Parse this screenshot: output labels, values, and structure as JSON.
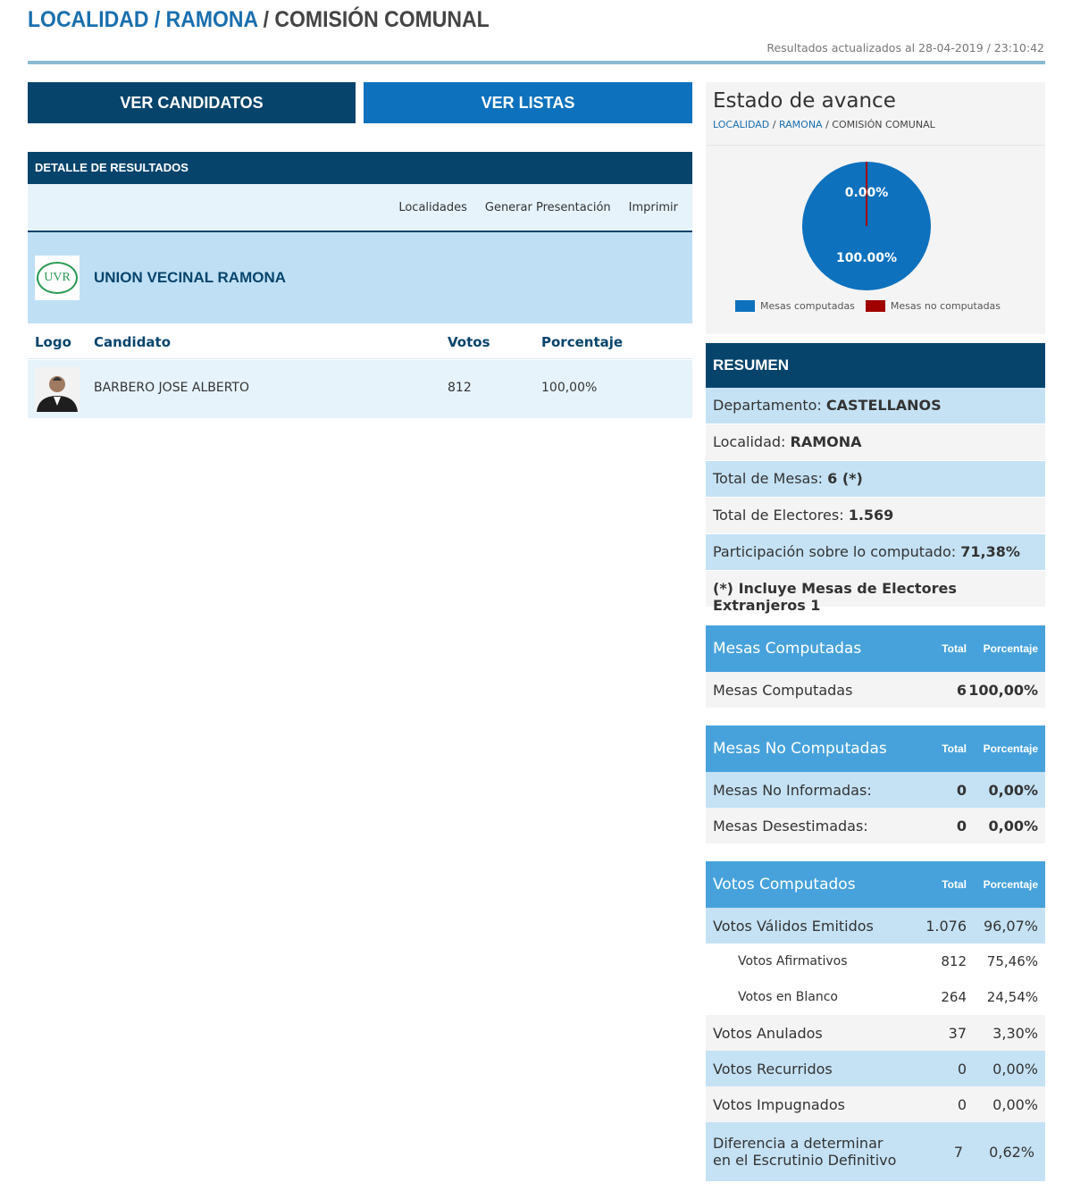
{
  "header": {
    "crumb1": "LOCALIDAD",
    "sep1": " / ",
    "crumb2": "RAMONA",
    "sep2": " / ",
    "crumb3": "COMISIÓN COMUNAL",
    "updated": "Resultados actualizados al 28-04-2019 / 23:10:42"
  },
  "buttons": {
    "candidatos": "VER CANDIDATOS",
    "listas": "VER LISTAS"
  },
  "detalle": {
    "title": "DETALLE DE RESULTADOS",
    "links": [
      "Localidades",
      "Generar Presentación",
      "Imprimir"
    ],
    "party": {
      "logo_text": "UVR",
      "name": "UNION VECINAL RAMONA"
    },
    "columns": [
      "Logo",
      "Candidato",
      "Votos",
      "Porcentaje"
    ],
    "rows": [
      {
        "candidato": "BARBERO JOSE ALBERTO",
        "votos": "812",
        "porcentaje": "100,00%"
      }
    ]
  },
  "estado": {
    "title": "Estado de avance",
    "bc1": "LOCALIDAD",
    "bc2": "RAMONA",
    "bc3": "COMISIÓN COMUNAL",
    "chart_data": {
      "type": "pie",
      "slices": [
        {
          "label": "Mesas computadas",
          "value": 100.0,
          "text": "100.00%",
          "color": "#0e71bd"
        },
        {
          "label": "Mesas no computadas",
          "value": 0.0,
          "text": "0.00%",
          "color": "#a00000"
        }
      ]
    }
  },
  "resumen": {
    "title": "RESUMEN",
    "rows": [
      {
        "label": "Departamento: ",
        "value": "CASTELLANOS"
      },
      {
        "label": "Localidad: ",
        "value": "RAMONA"
      },
      {
        "label": "Total de Mesas: ",
        "value": "6 (*)"
      },
      {
        "label": "Total de Electores: ",
        "value": "1.569"
      },
      {
        "label": "Participación sobre lo computado: ",
        "value": "71,38%"
      },
      {
        "label": "",
        "value": "(*) Incluye Mesas de Electores Extranjeros 1"
      }
    ]
  },
  "tables": [
    {
      "title": "Mesas Computadas",
      "col_total": "Total",
      "col_pct": "Porcentaje",
      "bold_values": true,
      "rows": [
        {
          "label": "Mesas Computadas",
          "total": "6",
          "pct": "100,00%"
        }
      ]
    },
    {
      "title": "Mesas No Computadas",
      "col_total": "Total",
      "col_pct": "Porcentaje",
      "bold_values": true,
      "rows": [
        {
          "label": "Mesas No Informadas:",
          "total": "0",
          "pct": "0,00%"
        },
        {
          "label": "Mesas Desestimadas:",
          "total": "0",
          "pct": "0,00%"
        }
      ]
    },
    {
      "title": "Votos Computados",
      "col_total": "Total",
      "col_pct": "Porcentaje",
      "bold_values": false,
      "rows": [
        {
          "label": "Votos Válidos Emitidos",
          "total": "1.076",
          "pct": "96,07%"
        },
        {
          "label": "Votos Afirmativos",
          "total": "812",
          "pct": "75,46%",
          "sub": true
        },
        {
          "label": "Votos en Blanco",
          "total": "264",
          "pct": "24,54%",
          "sub": true
        },
        {
          "label": "Votos Anulados",
          "total": "37",
          "pct": "3,30%"
        },
        {
          "label": "Votos Recurridos",
          "total": "0",
          "pct": "0,00%"
        },
        {
          "label": "Votos Impugnados",
          "total": "0",
          "pct": "0,00%"
        },
        {
          "label": "Diferencia a determinar en el Escrutinio Definitivo",
          "total": "7",
          "pct": "0,62%",
          "tall": true
        }
      ]
    }
  ]
}
